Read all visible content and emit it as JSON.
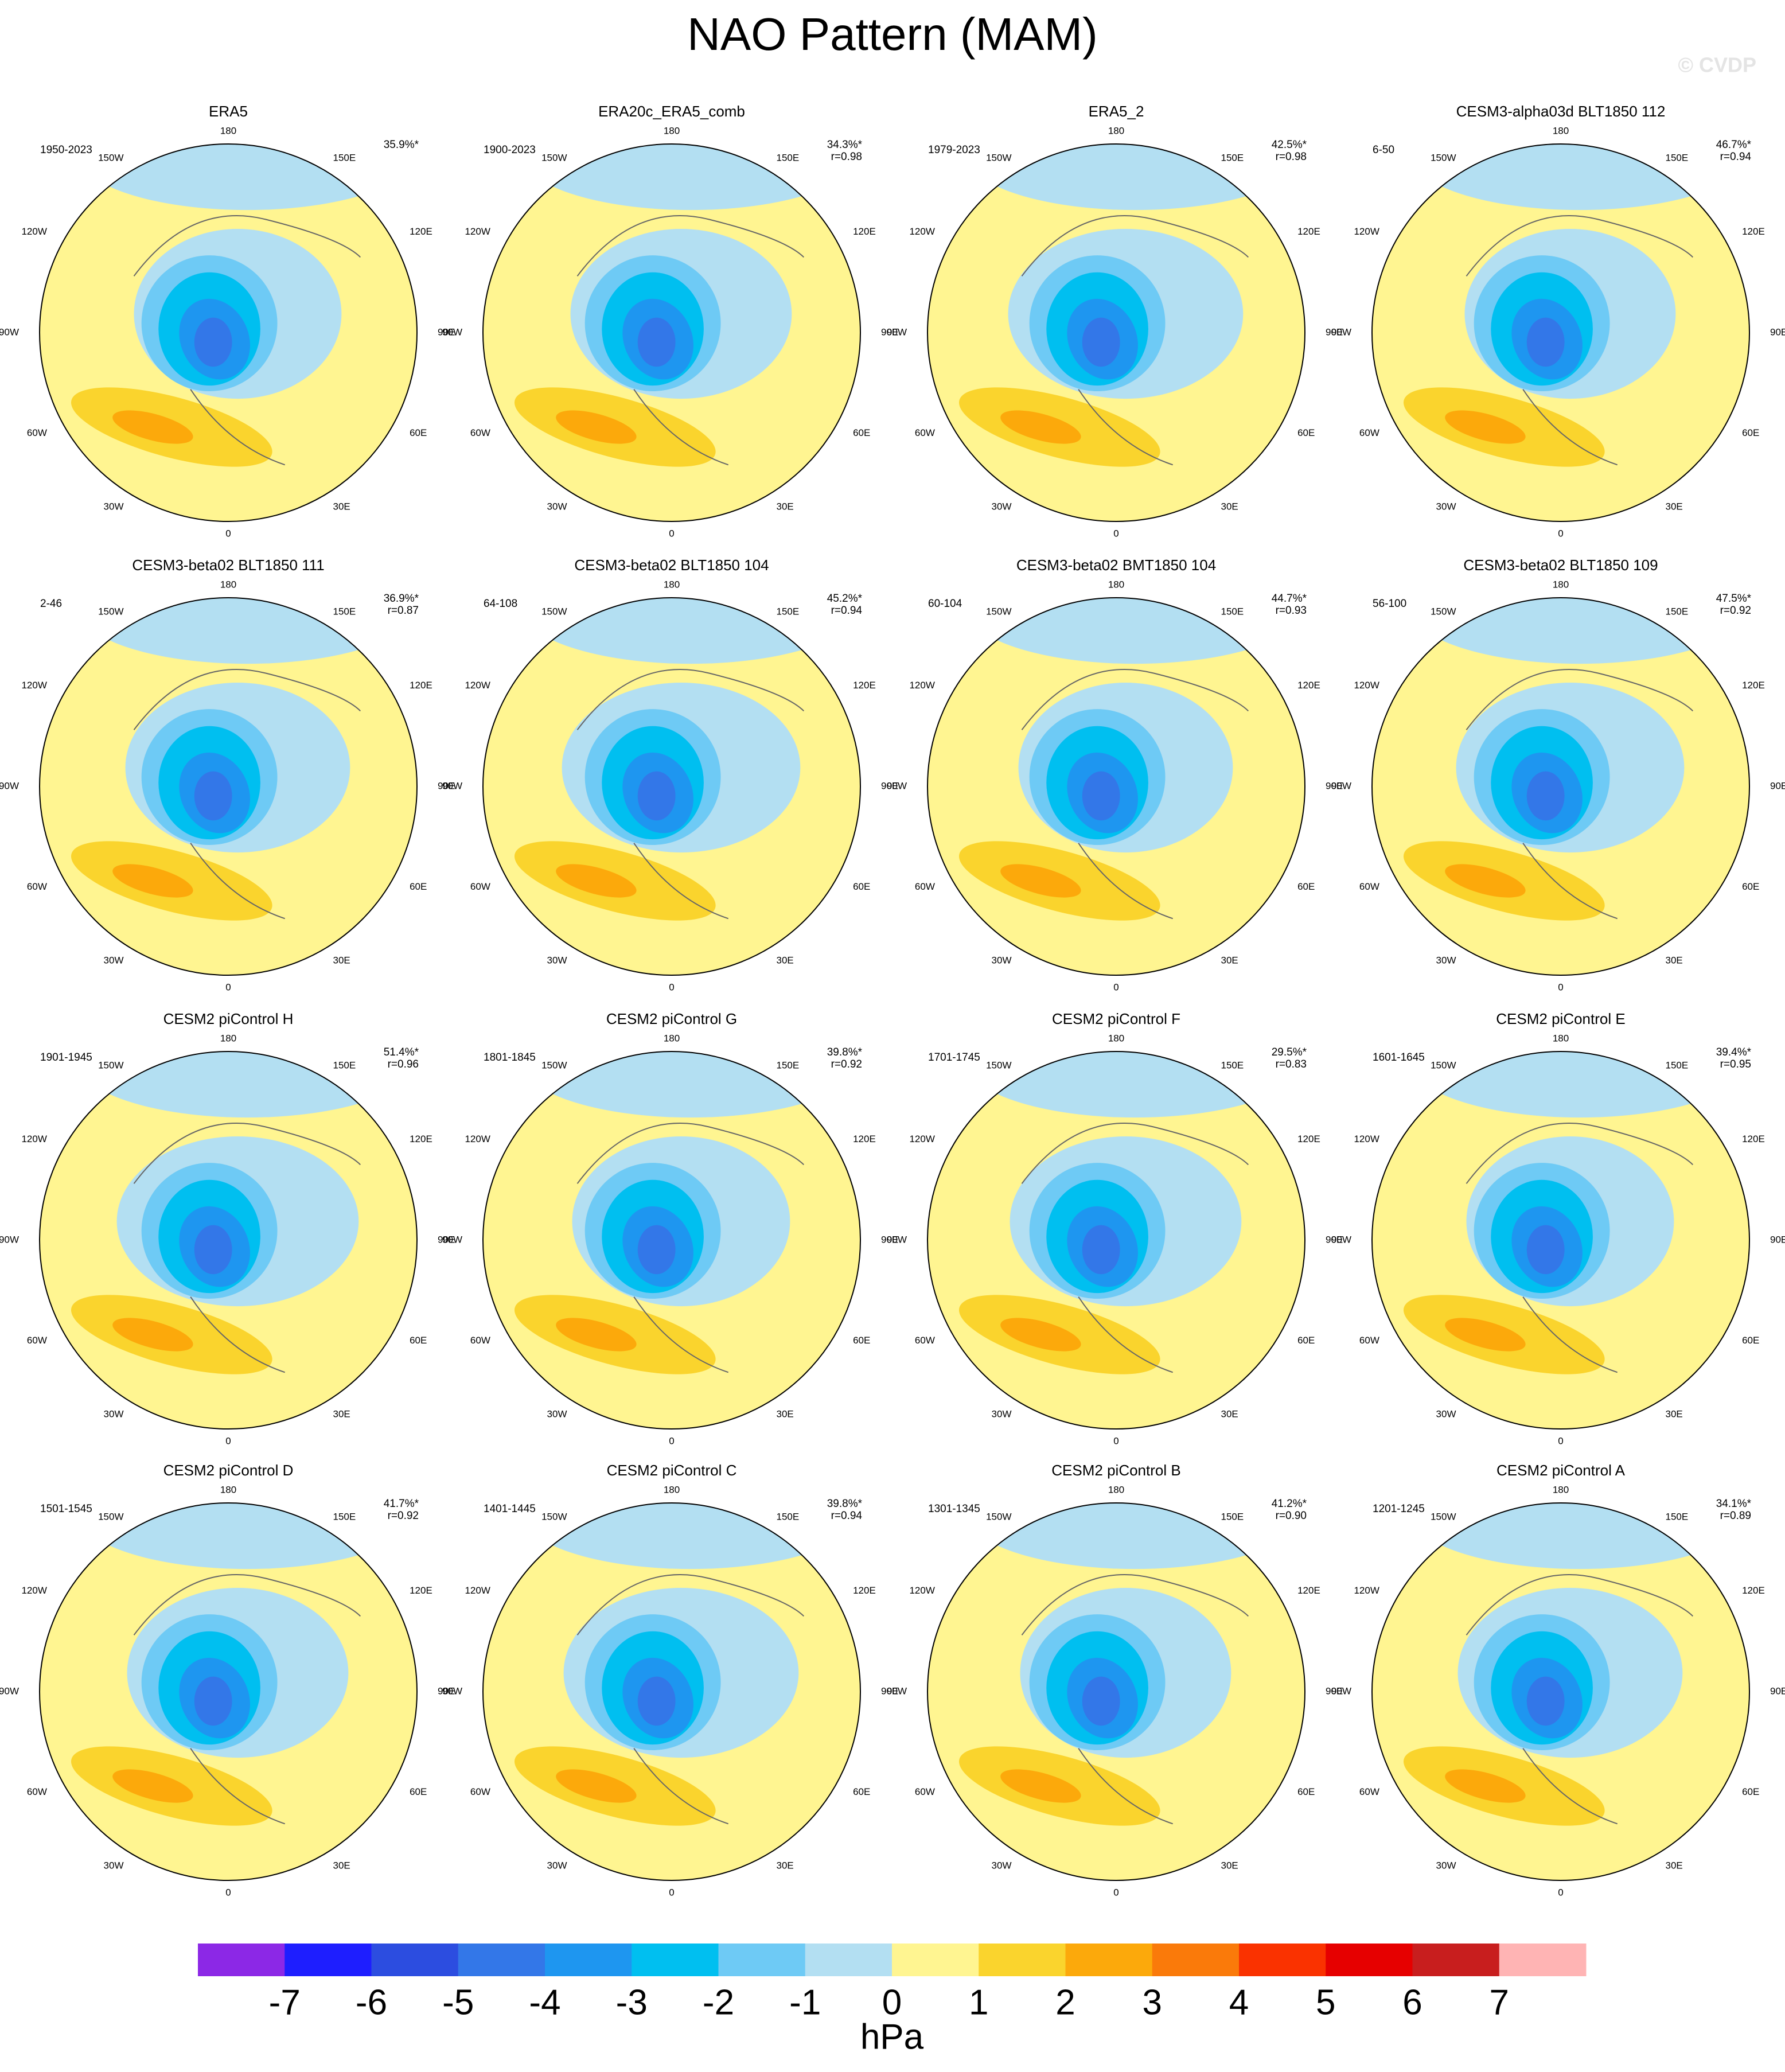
{
  "title": "NAO Pattern (MAM)",
  "watermark": "© CVDP",
  "lon_labels": [
    "0",
    "30E",
    "60E",
    "90E",
    "120E",
    "150E",
    "180",
    "150W",
    "120W",
    "90W",
    "60W",
    "30W"
  ],
  "panels": [
    {
      "title": "ERA5",
      "period": "1950-2023",
      "pct": "35.9%*"
    },
    {
      "title": "ERA20c_ERA5_comb",
      "period": "1900-2023",
      "pct": "34.3%*",
      "r": "r=0.98"
    },
    {
      "title": "ERA5_2",
      "period": "1979-2023",
      "pct": "42.5%*",
      "r": "r=0.98"
    },
    {
      "title": "CESM3-alpha03d BLT1850 112",
      "period": "6-50",
      "pct": "46.7%*",
      "r": "r=0.94"
    },
    {
      "title": "CESM3-beta02 BLT1850 111",
      "period": "2-46",
      "pct": "36.9%*",
      "r": "r=0.87"
    },
    {
      "title": "CESM3-beta02 BLT1850 104",
      "period": "64-108",
      "pct": "45.2%*",
      "r": "r=0.94"
    },
    {
      "title": "CESM3-beta02 BMT1850 104",
      "period": "60-104",
      "pct": "44.7%*",
      "r": "r=0.93"
    },
    {
      "title": "CESM3-beta02 BLT1850 109",
      "period": "56-100",
      "pct": "47.5%*",
      "r": "r=0.92"
    },
    {
      "title": "CESM2 piControl H",
      "period": "1901-1945",
      "pct": "51.4%*",
      "r": "r=0.96"
    },
    {
      "title": "CESM2 piControl G",
      "period": "1801-1845",
      "pct": "39.8%*",
      "r": "r=0.92"
    },
    {
      "title": "CESM2 piControl F",
      "period": "1701-1745",
      "pct": "29.5%*",
      "r": "r=0.83"
    },
    {
      "title": "CESM2 piControl E",
      "period": "1601-1645",
      "pct": "39.4%*",
      "r": "r=0.95"
    },
    {
      "title": "CESM2 piControl D",
      "period": "1501-1545",
      "pct": "41.7%*",
      "r": "r=0.92"
    },
    {
      "title": "CESM2 piControl C",
      "period": "1401-1445",
      "pct": "39.8%*",
      "r": "r=0.94"
    },
    {
      "title": "CESM2 piControl B",
      "period": "1301-1345",
      "pct": "41.2%*",
      "r": "r=0.90"
    },
    {
      "title": "CESM2 piControl A",
      "period": "1201-1245",
      "pct": "34.1%*",
      "r": "r=0.89"
    }
  ],
  "colorbar": {
    "colors": [
      "#8c28e6",
      "#1e1eff",
      "#2c4de0",
      "#3377e8",
      "#1e96f0",
      "#00bff0",
      "#6ecaf5",
      "#b3dff2",
      "#fff591",
      "#fad42d",
      "#fca90b",
      "#fa7a0a",
      "#fa3200",
      "#e60000",
      "#c81e1e",
      "#ffb4b4"
    ],
    "ticks": [
      -7,
      -6,
      -5,
      -4,
      -3,
      -2,
      -1,
      0,
      1,
      2,
      3,
      4,
      5,
      6,
      7
    ],
    "unit": "hPa"
  }
}
